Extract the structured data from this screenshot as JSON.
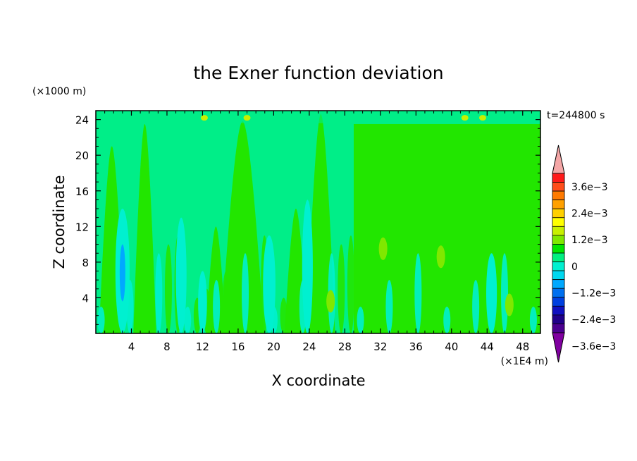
{
  "chart_data": {
    "type": "heatmap",
    "title": "the Exner function deviation",
    "xlabel": "X coordinate",
    "ylabel": "Z coordinate",
    "x_unit": "(×1E4 m)",
    "y_unit": "(×1000 m)",
    "time_label": "t=244800 s",
    "xlim": [
      0,
      50
    ],
    "ylim": [
      0,
      25
    ],
    "x_ticks": [
      4,
      8,
      12,
      16,
      20,
      24,
      28,
      32,
      36,
      40,
      44,
      48
    ],
    "y_ticks": [
      4,
      8,
      12,
      16,
      20,
      24
    ],
    "colorbar": {
      "levels_labeled": [
        "3.6e−3",
        "2.4e−3",
        "1.2e−3",
        "0",
        "−1.2e−3",
        "−2.4e−3",
        "−3.6e−3"
      ],
      "colors_top_to_bottom": [
        "#ff1a1a",
        "#ff4d1a",
        "#ff7a00",
        "#ffa000",
        "#ffd000",
        "#ffff00",
        "#c8f000",
        "#80e800",
        "#00e600",
        "#00f080",
        "#00f0d0",
        "#00d8f0",
        "#00a8ff",
        "#0070f0",
        "#0040e0",
        "#1010c0",
        "#20008a",
        "#4b0090"
      ],
      "top_arrow_color": "#f4a6a6",
      "bottom_arrow_color": "#8000a0"
    },
    "field_description_colors": {
      "background": "#00ee88",
      "positive_small": "#22e600",
      "negative_small": "#00f0d0",
      "negative_mid": "#00a8ff"
    }
  }
}
